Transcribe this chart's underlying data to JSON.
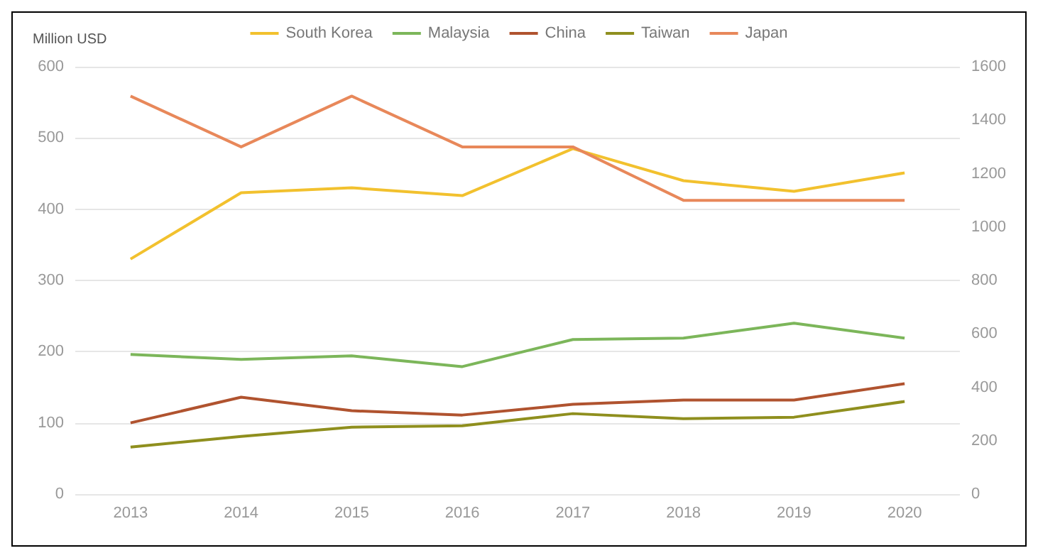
{
  "chart_data": {
    "type": "line",
    "ylabel": "Million USD",
    "categories": [
      "2013",
      "2014",
      "2015",
      "2016",
      "2017",
      "2018",
      "2019",
      "2020"
    ],
    "series": [
      {
        "name": "South Korea",
        "color": "#f2c12e",
        "values": [
          330,
          423,
          430,
          419,
          485,
          440,
          425,
          451
        ]
      },
      {
        "name": "Malaysia",
        "color": "#7cb65a",
        "values": [
          196,
          189,
          194,
          179,
          217,
          219,
          240,
          219
        ]
      },
      {
        "name": "China",
        "color": "#b0532f",
        "values": [
          100,
          136,
          117,
          111,
          126,
          132,
          132,
          155
        ]
      },
      {
        "name": "Taiwan",
        "color": "#8f8f1e",
        "values": [
          66,
          81,
          94,
          96,
          113,
          106,
          108,
          130
        ]
      },
      {
        "name": "Japan",
        "color": "#e8885a",
        "axis": "y2",
        "values": [
          1490,
          1300,
          1490,
          1300,
          1300,
          1100,
          1100,
          1100
        ]
      }
    ],
    "ylim": [
      0,
      600
    ],
    "yticks": [
      0,
      100,
      200,
      300,
      400,
      500,
      600
    ],
    "y2lim": [
      0,
      1600
    ],
    "y2ticks": [
      0,
      200,
      400,
      600,
      800,
      1000,
      1200,
      1400,
      1600
    ],
    "grid": "y",
    "legend": "top",
    "marker": "none",
    "line_style": "solid"
  }
}
